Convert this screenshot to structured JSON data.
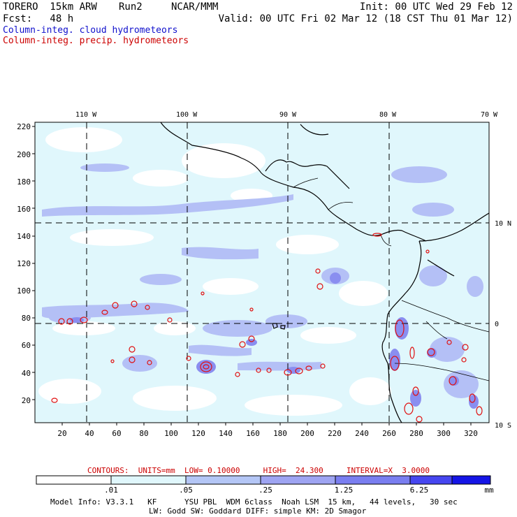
{
  "header": {
    "model": "TORERO  15km ARW",
    "run": "Run2",
    "org": "NCAR/MMM",
    "init": "Init: 00 UTC Wed 29 Feb 12",
    "fcst": "Fcst:   48 h",
    "valid": "Valid: 00 UTC Fri 02 Mar 12 (18 CST Thu 01 Mar 12)",
    "field1": "Column-integ. cloud hydrometeors",
    "field2": "Column-integ. precip. hydrometeors"
  },
  "map": {
    "lon_labels": [
      "110 W",
      "100 W",
      "90 W",
      "80 W",
      "70 W"
    ],
    "lat_labels": [
      "10 N",
      "0",
      "10 S"
    ],
    "y_ticks": [
      "220",
      "200",
      "180",
      "160",
      "140",
      "120",
      "100",
      "80",
      "60",
      "40",
      "20"
    ],
    "x_ticks": [
      "20",
      "40",
      "60",
      "80",
      "100",
      "120",
      "140",
      "160",
      "180",
      "200",
      "220",
      "240",
      "260",
      "280",
      "300",
      "320"
    ],
    "colors": {
      "shade1": "#e0f7fc",
      "shade2": "#aab8f4",
      "shade3": "#8a8ef0",
      "precip_contour": "#e01010",
      "coast": "#000000"
    }
  },
  "contours_info": "CONTOURS:  UNITS=mm  LOW= 0.10000     HIGH=  24.300     INTERVAL=X  3.0000",
  "colorbar": {
    "labels": [
      ".01",
      ".05",
      ".25",
      "1.25",
      "6.25"
    ],
    "unit": "mm",
    "colors": [
      "#ffffff",
      "#e0f7fc",
      "#b4c6f6",
      "#9ea4f2",
      "#7a7ef0",
      "#4646f0",
      "#1414e6"
    ]
  },
  "footer": {
    "line1": "Model Info: V3.3.1   KF      YSU PBL  WDM 6class  Noah LSM  15 km,   44 levels,   30 sec",
    "line2": "LW: Godd SW: Goddard DIFF: simple KM: 2D Smagor"
  }
}
